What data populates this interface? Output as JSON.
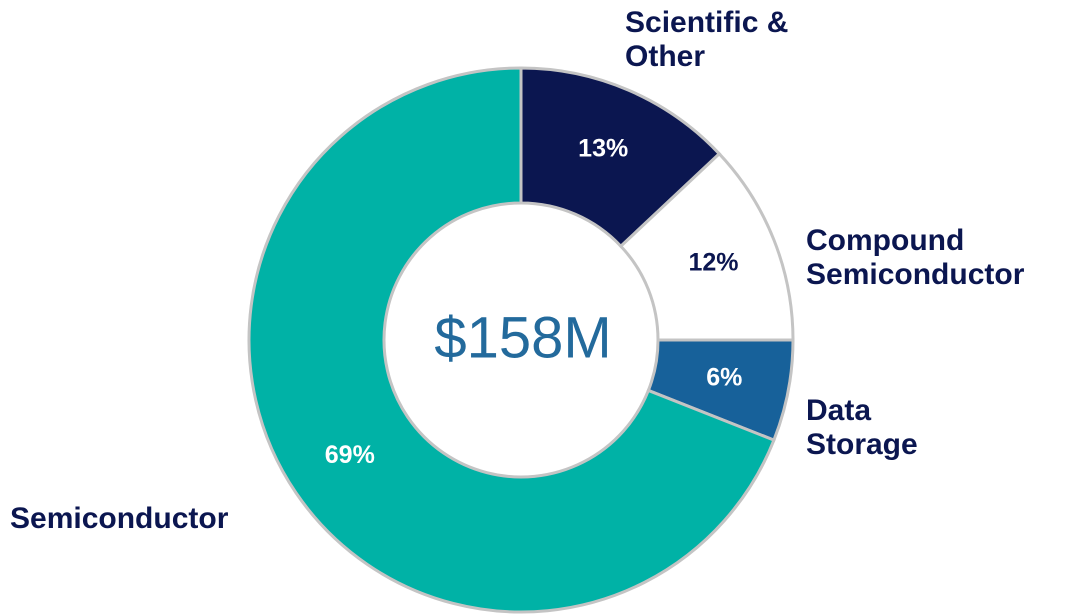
{
  "chart_data": {
    "type": "donut",
    "center_label": "$158M",
    "categories": [
      "Scientific & Other",
      "Compound Semiconductor",
      "Data Storage",
      "Semiconductor"
    ],
    "values": [
      13,
      12,
      6,
      69
    ],
    "value_labels": [
      "13%",
      "12%",
      "6%",
      "69%"
    ],
    "colors": [
      "#0b1650",
      "#ffffff",
      "#17619a",
      "#00b2a6"
    ],
    "label_colors": [
      "#ffffff",
      "#0b1650",
      "#ffffff",
      "#ffffff"
    ]
  }
}
